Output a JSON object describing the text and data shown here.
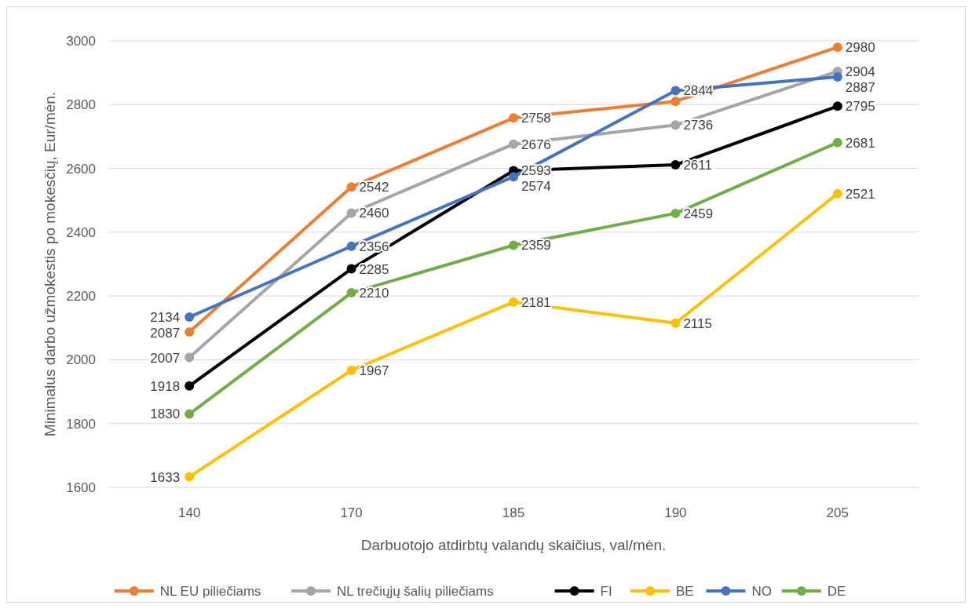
{
  "chart_data": {
    "type": "line",
    "xlabel": "Darbuotojo atdirbtų valandų skaičius, val/mėn.",
    "ylabel": "Minimalus darbo užmokestis po mokesčių, Eur/mėn.",
    "categories": [
      "140",
      "170",
      "185",
      "190",
      "205"
    ],
    "ylim": [
      1600,
      3000
    ],
    "yticks": [
      1600,
      1800,
      2000,
      2200,
      2400,
      2600,
      2800,
      3000
    ],
    "grid": "y",
    "legend": "bottom",
    "marker": "circle",
    "line_style": "solid",
    "series": [
      {
        "name": "NL EU piliečiams",
        "color": "#ed7d31",
        "values": [
          2087,
          2542,
          2758,
          2810,
          2980
        ],
        "value_labels": [
          "2087",
          "2542",
          "2758",
          null,
          "2980"
        ]
      },
      {
        "name": "NL trečiųjų šalių piliečiams",
        "color": "#a5a5a5",
        "values": [
          2007,
          2460,
          2676,
          2736,
          2904
        ],
        "value_labels": [
          "2007",
          "2460",
          "2676",
          "2736",
          "2904"
        ]
      },
      {
        "name": "FI",
        "color": "#000000",
        "values": [
          1918,
          2285,
          2593,
          2611,
          2795
        ],
        "value_labels": [
          "1918",
          "2285",
          "2593",
          "2611",
          "2795"
        ]
      },
      {
        "name": "BE",
        "color": "#ffc000",
        "values": [
          1633,
          1967,
          2181,
          2115,
          2521
        ],
        "value_labels": [
          "1633",
          "1967",
          "2181",
          "2115",
          "2521"
        ]
      },
      {
        "name": "NO",
        "color": "#4472c4",
        "values": [
          2134,
          2356,
          2574,
          2844,
          2887
        ],
        "value_labels": [
          "2134",
          "2356",
          "2574",
          "2844",
          "2887"
        ]
      },
      {
        "name": "DE",
        "color": "#70ad47",
        "values": [
          1830,
          2210,
          2359,
          2459,
          2681
        ],
        "value_labels": [
          "1830",
          "2210",
          "2359",
          "2459",
          "2681"
        ]
      }
    ]
  }
}
